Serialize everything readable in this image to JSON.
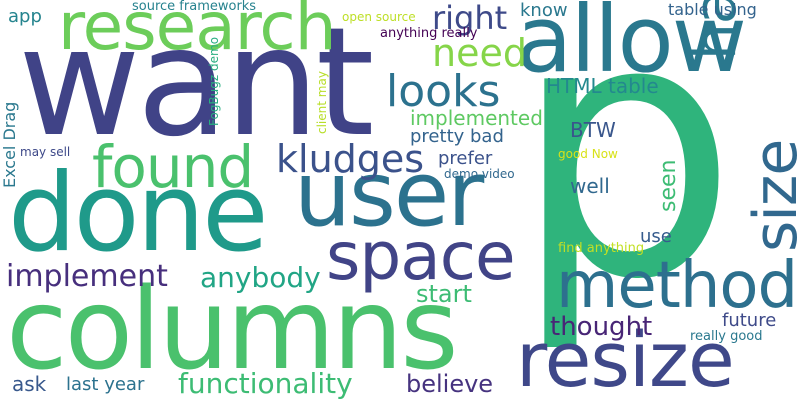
{
  "background_color": "#ffffff",
  "words": [
    {
      "text": "p",
      "color": "#2fb47c"
    },
    {
      "text": "want",
      "color": "#404387"
    },
    {
      "text": "columns",
      "color": "#4ac16d"
    },
    {
      "text": "done",
      "color": "#1f9a8a"
    },
    {
      "text": "allow",
      "color": "#2a788e"
    },
    {
      "text": "user",
      "color": "#2c728e"
    },
    {
      "text": "resize",
      "color": "#3f4889"
    },
    {
      "text": "research",
      "color": "#6ccd5a"
    },
    {
      "text": "method",
      "color": "#2d708e"
    },
    {
      "text": "space",
      "color": "#414487"
    },
    {
      "text": "found",
      "color": "#4ac16d"
    },
    {
      "text": "hacks",
      "color": "#2a788e"
    },
    {
      "text": "size",
      "color": "#31688e"
    },
    {
      "text": "kludges",
      "color": "#3b528b"
    },
    {
      "text": "looks",
      "color": "#2c728e"
    },
    {
      "text": "need",
      "color": "#86d549"
    },
    {
      "text": "right",
      "color": "#3e4a89"
    },
    {
      "text": "implement",
      "color": "#472f7d"
    },
    {
      "text": "anybody",
      "color": "#21a585"
    },
    {
      "text": "functionality",
      "color": "#3dbc74"
    },
    {
      "text": "thought",
      "color": "#482576"
    },
    {
      "text": "believe",
      "color": "#46337f"
    },
    {
      "text": "start",
      "color": "#3dbc74"
    },
    {
      "text": "implemented",
      "color": "#5ec962"
    },
    {
      "text": "pretty bad",
      "color": "#33638d"
    },
    {
      "text": "HTML table",
      "color": "#23898e"
    },
    {
      "text": "prefer",
      "color": "#3b528b"
    },
    {
      "text": "well",
      "color": "#31688e"
    },
    {
      "text": "seen",
      "color": "#3dbc74"
    },
    {
      "text": "BTW",
      "color": "#39568c"
    },
    {
      "text": "future",
      "color": "#3e4a89"
    },
    {
      "text": "use",
      "color": "#365c8d"
    },
    {
      "text": "know",
      "color": "#2a788e"
    },
    {
      "text": "app",
      "color": "#25848e"
    },
    {
      "text": "ask",
      "color": "#38588c"
    },
    {
      "text": "last year",
      "color": "#2c728e"
    },
    {
      "text": "table using",
      "color": "#33638d"
    },
    {
      "text": "Excel Drag",
      "color": "#2a788e"
    },
    {
      "text": "source frameworks",
      "color": "#26828e"
    },
    {
      "text": "open source",
      "color": "#bddf26"
    },
    {
      "text": "anything really",
      "color": "#440154"
    },
    {
      "text": "FogBugz demo",
      "color": "#28ae80"
    },
    {
      "text": "client may",
      "color": "#b8de29"
    },
    {
      "text": "demo video",
      "color": "#31688e"
    },
    {
      "text": "good Now",
      "color": "#d8e219"
    },
    {
      "text": "find anything",
      "color": "#c2df23"
    },
    {
      "text": "really good",
      "color": "#2a788e"
    },
    {
      "text": "may sell",
      "color": "#3e4989"
    }
  ]
}
